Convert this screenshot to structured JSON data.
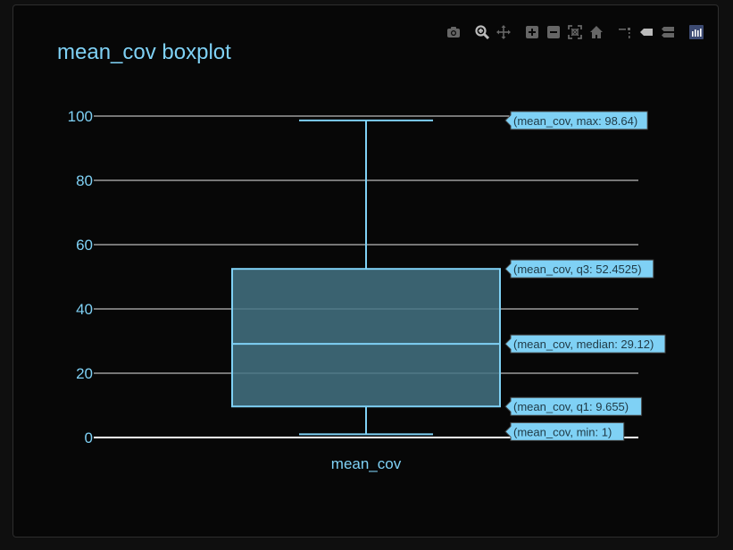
{
  "toolbar": {
    "icons": [
      "camera-icon",
      "zoom-icon",
      "pan-icon",
      "zoom-in-icon",
      "zoom-out-icon",
      "autoscale-icon",
      "reset-axes-icon",
      "spike-lines-icon",
      "hover-closest-icon",
      "hover-compare-icon",
      "plotly-logo-icon"
    ]
  },
  "colors": {
    "background": "#070707",
    "accent": "#7fd1f5",
    "box_fill": "#437282",
    "hover_label_bg": "#7fd1f5",
    "gridline": "#ffffff"
  },
  "chart_data": {
    "type": "box",
    "title": "mean_cov boxplot",
    "categories": [
      "mean_cov"
    ],
    "series": [
      {
        "name": "mean_cov",
        "min": 1,
        "q1": 9.655,
        "median": 29.12,
        "q3": 52.4525,
        "max": 98.64
      }
    ],
    "ylim": [
      0,
      100
    ],
    "yticks": [
      "0",
      "20",
      "40",
      "60",
      "80",
      "100"
    ],
    "grid": true,
    "hover_labels": [
      "(mean_cov, max: 98.64)",
      "(mean_cov, q3: 52.4525)",
      "(mean_cov, median: 29.12)",
      "(mean_cov, q1: 9.655)",
      "(mean_cov, min: 1)"
    ]
  }
}
